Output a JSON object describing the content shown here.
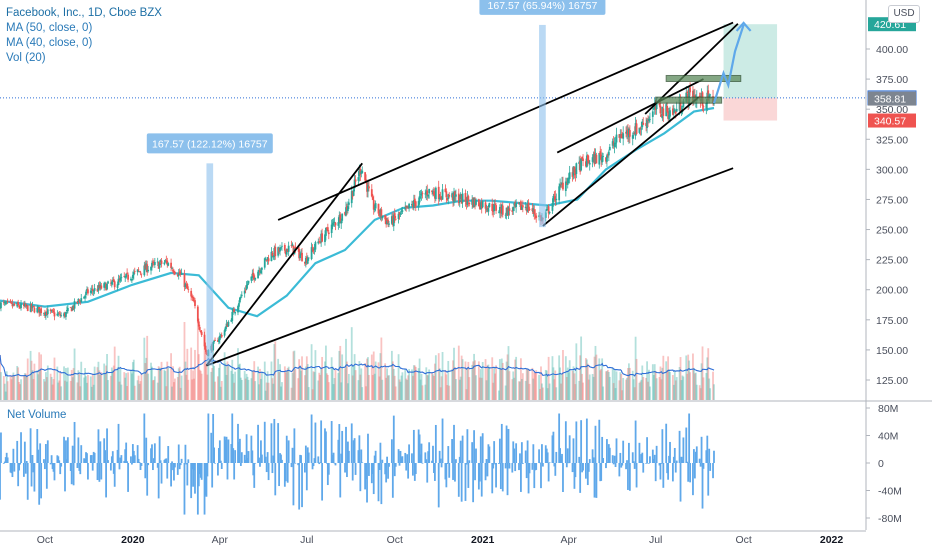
{
  "header": {
    "symbol_line": "Facebook, Inc., 1D, Cboe BZX",
    "ma50": "MA (50, close, 0)",
    "ma40": "MA (40, close, 0)",
    "vol": "Vol (20)",
    "net_volume_label": "Net Volume",
    "currency": "USD"
  },
  "colors": {
    "up": "#26a69a",
    "down": "#ef5350",
    "ma": "#3bbbd6",
    "vol_ma": "#2f6fd6",
    "net_volume": "#5fa8ea",
    "callout": "#8cc0ec",
    "target_zone": "#bfe6df",
    "stop_zone": "#f9d0d0",
    "support_box": "#5c8a5c"
  },
  "chart_data": {
    "type": "candlestick",
    "price_axis": {
      "range": [
        112,
        425
      ],
      "ticks": [
        "125.00",
        "150.00",
        "175.00",
        "200.00",
        "225.00",
        "250.00",
        "275.00",
        "300.00",
        "325.00",
        "350.00",
        "375.00",
        "400.00"
      ],
      "tick_values": [
        125,
        150,
        175,
        200,
        225,
        250,
        275,
        300,
        325,
        350,
        375,
        400
      ]
    },
    "time_axis": {
      "labels": [
        "Oct",
        "2020",
        "Apr",
        "Jul",
        "Oct",
        "2021",
        "Apr",
        "Jul",
        "Oct",
        "2022"
      ],
      "bold": [
        false,
        true,
        false,
        false,
        false,
        true,
        false,
        false,
        false,
        true
      ],
      "dates": [
        "2019-10-01",
        "2020-01-01",
        "2020-04-01",
        "2020-07-01",
        "2020-10-01",
        "2021-01-01",
        "2021-04-01",
        "2021-07-01",
        "2021-10-01",
        "2022-01-01"
      ],
      "range": [
        "2019-08-15",
        "2022-02-05"
      ]
    },
    "price_path": [
      [
        "2019-08-15",
        188
      ],
      [
        "2019-09-15",
        185
      ],
      [
        "2019-10-20",
        178
      ],
      [
        "2019-11-15",
        198
      ],
      [
        "2019-12-15",
        206
      ],
      [
        "2020-01-15",
        218
      ],
      [
        "2020-02-05",
        223
      ],
      [
        "2020-02-20",
        212
      ],
      [
        "2020-03-05",
        188
      ],
      [
        "2020-03-18",
        147
      ],
      [
        "2020-04-05",
        165
      ],
      [
        "2020-04-30",
        205
      ],
      [
        "2020-05-25",
        230
      ],
      [
        "2020-06-15",
        235
      ],
      [
        "2020-06-30",
        225
      ],
      [
        "2020-07-15",
        242
      ],
      [
        "2020-08-10",
        265
      ],
      [
        "2020-08-27",
        302
      ],
      [
        "2020-09-08",
        270
      ],
      [
        "2020-09-25",
        255
      ],
      [
        "2020-10-12",
        265
      ],
      [
        "2020-11-05",
        282
      ],
      [
        "2020-12-01",
        277
      ],
      [
        "2020-12-28",
        272
      ],
      [
        "2021-01-25",
        265
      ],
      [
        "2021-02-15",
        270
      ],
      [
        "2021-03-05",
        258
      ],
      [
        "2021-03-25",
        287
      ],
      [
        "2021-04-15",
        305
      ],
      [
        "2021-05-10",
        312
      ],
      [
        "2021-05-25",
        328
      ],
      [
        "2021-06-15",
        335
      ],
      [
        "2021-07-01",
        350
      ],
      [
        "2021-07-20",
        347
      ],
      [
        "2021-08-05",
        362
      ],
      [
        "2021-08-20",
        357
      ],
      [
        "2021-08-31",
        359
      ]
    ],
    "ma50_path": [
      [
        "2019-08-15",
        191
      ],
      [
        "2019-10-01",
        186
      ],
      [
        "2019-11-15",
        190
      ],
      [
        "2019-12-31",
        204
      ],
      [
        "2020-02-10",
        214
      ],
      [
        "2020-03-10",
        212
      ],
      [
        "2020-04-10",
        185
      ],
      [
        "2020-05-10",
        178
      ],
      [
        "2020-06-10",
        195
      ],
      [
        "2020-07-10",
        222
      ],
      [
        "2020-08-10",
        233
      ],
      [
        "2020-09-10",
        258
      ],
      [
        "2020-10-10",
        268
      ],
      [
        "2020-11-10",
        270
      ],
      [
        "2020-12-10",
        274
      ],
      [
        "2021-01-10",
        274
      ],
      [
        "2021-02-10",
        272
      ],
      [
        "2021-03-10",
        270
      ],
      [
        "2021-04-10",
        275
      ],
      [
        "2021-05-10",
        300
      ],
      [
        "2021-06-10",
        316
      ],
      [
        "2021-07-10",
        330
      ],
      [
        "2021-08-10",
        348
      ],
      [
        "2021-08-31",
        351
      ]
    ],
    "price_tags": [
      {
        "value": "420.61",
        "price": 420.61,
        "color": "#26a69a"
      },
      {
        "value": "359.37",
        "price": 359.37,
        "color": "#ffffff"
      },
      {
        "value": "358.81",
        "price": 358.81,
        "color": "#7d8590"
      },
      {
        "value": "340.57",
        "price": 340.57,
        "color": "#ef5350"
      }
    ],
    "callouts": [
      {
        "text": "167.57 (122.12%) 16757",
        "date_from": "2020-03-18",
        "date_to": "2020-03-25",
        "price_from": 137,
        "price_to": 305
      },
      {
        "text": "167.57 (65.94%) 16757",
        "date_from": "2021-03-01",
        "date_to": "2021-03-08",
        "price_from": 252,
        "price_to": 420
      }
    ],
    "trendlines": [
      {
        "from": [
          "2020-03-18",
          137
        ],
        "to": [
          "2021-09-20",
          301
        ]
      },
      {
        "from": [
          "2020-03-18",
          137
        ],
        "to": [
          "2020-08-28",
          305
        ]
      },
      {
        "from": [
          "2020-06-01",
          258
        ],
        "to": [
          "2021-09-20",
          422
        ]
      },
      {
        "from": [
          "2021-03-05",
          253
        ],
        "to": [
          "2021-08-15",
          360
        ]
      },
      {
        "from": [
          "2021-03-20",
          314
        ],
        "to": [
          "2021-08-20",
          375
        ]
      },
      {
        "from": [
          "2021-06-20",
          346
        ],
        "to": [
          "2021-09-25",
          421
        ]
      }
    ],
    "forecast_path": [
      [
        "2021-08-31",
        355
      ],
      [
        "2021-09-10",
        380
      ],
      [
        "2021-09-15",
        370
      ],
      [
        "2021-09-22",
        398
      ],
      [
        "2021-10-01",
        420
      ]
    ],
    "position_zone": {
      "date_from": "2021-09-10",
      "date_to": "2021-11-05",
      "entry": 359.37,
      "target": 420.61,
      "stop": 340.57
    },
    "support_boxes": [
      {
        "date_from": "2021-07-12",
        "date_to": "2021-09-28",
        "low": 373,
        "high": 378
      },
      {
        "date_from": "2021-07-01",
        "date_to": "2021-09-08",
        "low": 355,
        "high": 360
      }
    ],
    "net_volume_axis": {
      "ticks": [
        "80M",
        "40M",
        "0",
        "-40M",
        "-80M"
      ],
      "tick_values": [
        80,
        40,
        0,
        -40,
        -80
      ],
      "range": [
        -90,
        90
      ]
    }
  }
}
